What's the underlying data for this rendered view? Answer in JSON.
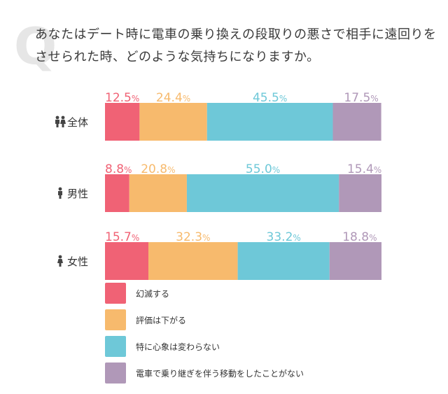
{
  "question": {
    "mark": "Q",
    "text": "あなたはデート時に電車の乗り換えの段取りの悪さで相手に遠回りをさせられた時、どのような気持ちになりますか。"
  },
  "colors": {
    "text": "#3a3a3a",
    "series": [
      "#f06275",
      "#f7ba6d",
      "#6ec8d8",
      "#b098b8"
    ]
  },
  "chart_data": {
    "type": "bar",
    "stacked": "horizontal-100%",
    "categories": [
      "全体",
      "男性",
      "女性"
    ],
    "category_icons": [
      "people-icon",
      "man-icon",
      "woman-icon"
    ],
    "value_suffix": "%",
    "series": [
      {
        "name": "幻滅する",
        "values": [
          12.5,
          8.8,
          15.7
        ]
      },
      {
        "name": "評価は下がる",
        "values": [
          24.4,
          20.8,
          32.3
        ]
      },
      {
        "name": "特に心象は変わらない",
        "values": [
          45.5,
          55.0,
          33.2
        ]
      },
      {
        "name": "電車で乗り継ぎを伴う移動をしたことがない",
        "values": [
          17.5,
          15.4,
          18.8
        ]
      }
    ],
    "legend_position": "bottom-left"
  }
}
